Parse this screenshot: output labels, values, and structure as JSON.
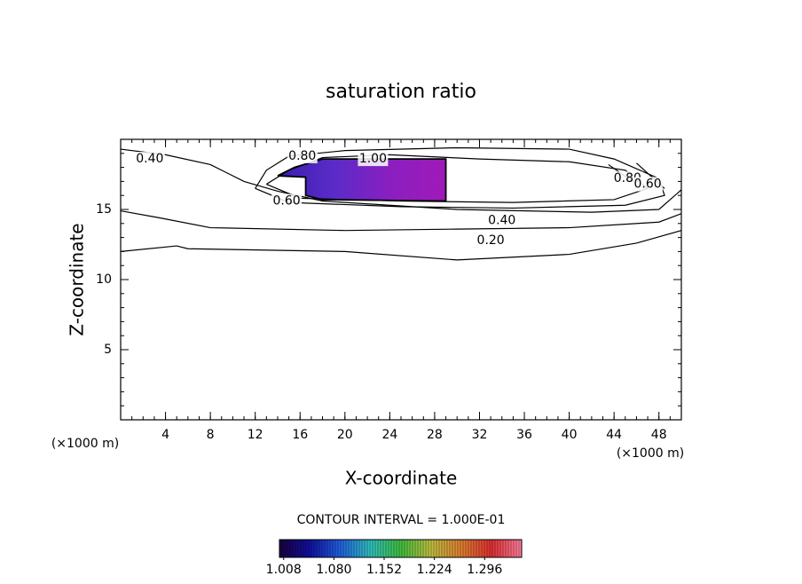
{
  "chart_data": {
    "type": "contour",
    "title": "saturation ratio",
    "x_label": "X-coordinate",
    "y_label": "Z-coordinate",
    "x_unit": "(×1000 m)",
    "y_unit": "(×1000 m)",
    "xlim": [
      0,
      50
    ],
    "ylim": [
      0,
      20
    ],
    "xticks": [
      4,
      8,
      12,
      16,
      20,
      24,
      28,
      32,
      36,
      40,
      44,
      48
    ],
    "yticks": [
      5,
      10,
      15
    ],
    "contour_note": "CONTOUR INTERVAL = 1.000E-01",
    "contours": [
      {
        "level": {
          "value": 0.2,
          "label": "0.20"
        },
        "label_at": [
          33,
          12.8
        ],
        "points": [
          [
            0,
            12.0
          ],
          [
            5,
            12.4
          ],
          [
            6,
            12.2
          ],
          [
            20,
            12.0
          ],
          [
            30,
            11.4
          ],
          [
            40,
            11.8
          ],
          [
            46,
            12.6
          ],
          [
            50,
            13.5
          ]
        ]
      },
      {
        "level": {
          "value": 0.4,
          "label": "0.40"
        },
        "label_at": [
          34,
          14.2
        ],
        "points": [
          [
            0,
            14.9
          ],
          [
            3.5,
            14.4
          ],
          [
            8,
            13.7
          ],
          [
            20,
            13.5
          ],
          [
            30,
            13.6
          ],
          [
            40,
            13.7
          ],
          [
            48,
            14.1
          ],
          [
            50,
            14.7
          ]
        ]
      },
      {
        "level": {
          "value": 0.4,
          "label": "0.40"
        },
        "label_at": [
          2.6,
          18.6
        ],
        "points": [
          [
            0,
            19.3
          ],
          [
            4,
            18.9
          ],
          [
            8,
            18.2
          ],
          [
            11,
            17.0
          ],
          [
            14,
            16.3
          ],
          [
            18,
            15.6
          ],
          [
            30,
            15.0
          ],
          [
            42,
            14.8
          ],
          [
            48,
            15.0
          ],
          [
            50,
            16.4
          ]
        ]
      },
      {
        "level": {
          "value": 0.6,
          "label": "0.60"
        },
        "label_at": [
          14.8,
          15.6
        ],
        "points": [
          [
            12,
            16.5
          ],
          [
            15,
            15.5
          ],
          [
            25,
            15.2
          ],
          [
            35,
            15.1
          ],
          [
            45,
            15.3
          ],
          [
            48.5,
            16.0
          ],
          [
            48,
            17.2
          ],
          [
            44,
            18.6
          ],
          [
            40,
            19.3
          ],
          [
            30,
            19.4
          ],
          [
            20,
            19.2
          ],
          [
            15,
            18.8
          ],
          [
            13,
            17.8
          ],
          [
            12,
            16.5
          ]
        ]
      },
      {
        "level": {
          "value": 0.8,
          "label": "0.80"
        },
        "label_at": [
          16.2,
          18.8
        ],
        "points": [
          [
            13,
            16.8
          ],
          [
            16,
            15.8
          ],
          [
            25,
            15.6
          ],
          [
            35,
            15.5
          ],
          [
            44,
            15.7
          ],
          [
            47,
            16.5
          ],
          [
            45,
            17.8
          ],
          [
            40,
            18.4
          ],
          [
            32,
            18.6
          ],
          [
            24,
            18.9
          ],
          [
            18,
            18.7
          ],
          [
            15,
            17.8
          ],
          [
            13,
            16.8
          ]
        ]
      },
      {
        "level": {
          "value": 0.8,
          "label": "0.80"
        },
        "label_at": [
          45.2,
          17.2
        ],
        "points": [
          [
            43.5,
            18.2
          ],
          [
            46,
            16.8
          ]
        ]
      },
      {
        "level": {
          "value": 0.6,
          "label": "0.60"
        },
        "label_at": [
          47,
          16.8
        ],
        "points": [
          [
            46,
            18.3
          ],
          [
            48.5,
            16.5
          ]
        ]
      },
      {
        "level": {
          "value": 1.0,
          "label": "1.00"
        },
        "label_at": [
          22.5,
          18.6
        ],
        "points": [
          [
            14,
            17.4
          ],
          [
            16.5,
            17.3
          ],
          [
            16.5,
            16.0
          ],
          [
            18,
            15.7
          ],
          [
            29,
            15.6
          ],
          [
            29,
            18.6
          ],
          [
            18,
            18.6
          ],
          [
            15.5,
            18.0
          ],
          [
            14,
            17.4
          ]
        ]
      }
    ],
    "filled_region": {
      "colors": [
        "#3a1fb0",
        "#5a2bc8",
        "#8a1fc0",
        "#a01ab8"
      ],
      "points": [
        [
          14,
          17.4
        ],
        [
          16.5,
          17.3
        ],
        [
          16.5,
          16.0
        ],
        [
          18,
          15.7
        ],
        [
          29,
          15.6
        ],
        [
          29,
          18.6
        ],
        [
          18,
          18.6
        ],
        [
          15.5,
          18.0
        ]
      ]
    },
    "colorbar": {
      "range": [
        1.002,
        1.349
      ],
      "colors": [
        "#1a0040",
        "#1010a0",
        "#2060e0",
        "#30c0c0",
        "#40c040",
        "#c0c040",
        "#e08030",
        "#e03030",
        "#ff80a0"
      ],
      "ticks": [
        {
          "value": 1.008,
          "label": "1.008"
        },
        {
          "value": 1.08,
          "label": "1.080"
        },
        {
          "value": 1.152,
          "label": "1.152"
        },
        {
          "value": 1.224,
          "label": "1.224"
        },
        {
          "value": 1.296,
          "label": "1.296"
        }
      ]
    }
  }
}
